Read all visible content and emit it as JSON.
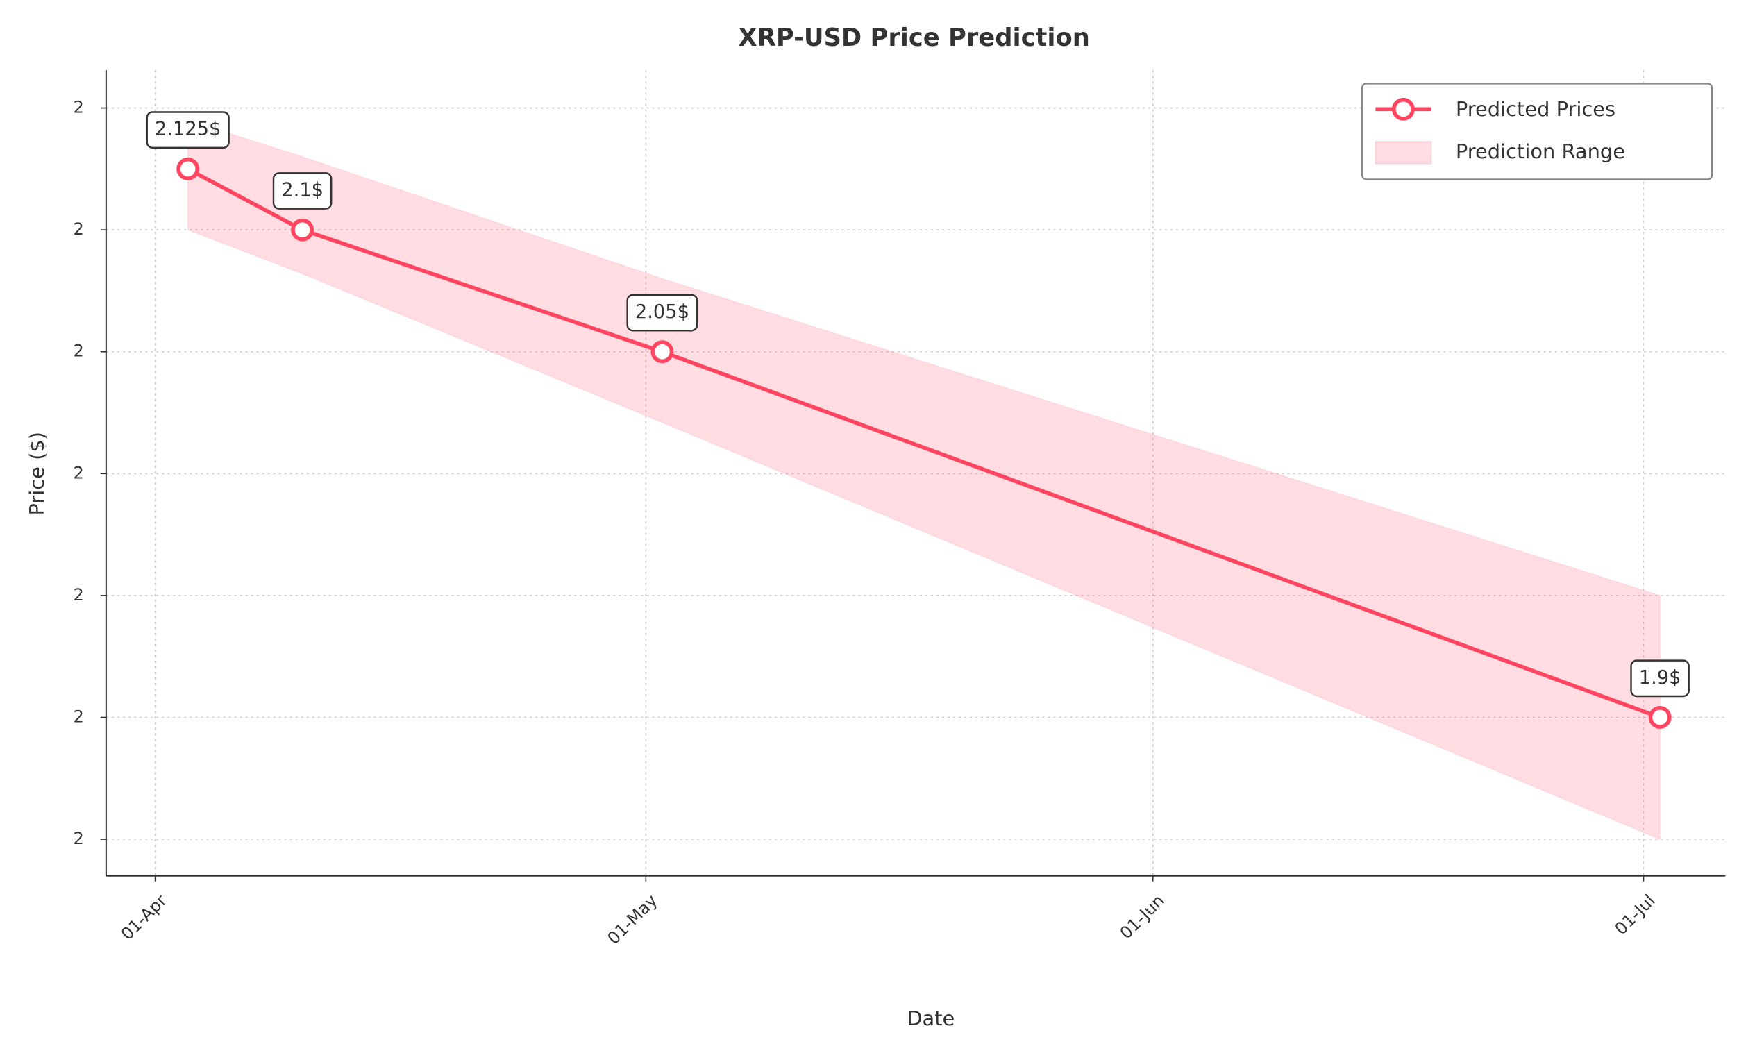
{
  "chart_data": {
    "type": "line",
    "title": "XRP-USD Price Prediction",
    "x_label": "Date",
    "y_label": "Price ($)",
    "x": [
      "03-Apr",
      "10-Apr",
      "02-May",
      "02-Jul"
    ],
    "series": [
      {
        "name": "Predicted Prices",
        "color": "#ff4560",
        "values": [
          2.125,
          2.1,
          2.05,
          1.9
        ],
        "value_labels": [
          "2.125$",
          "2.1$",
          "2.05$",
          "1.9$"
        ]
      },
      {
        "name": "Prediction Range",
        "color": "#ff4560",
        "upper": [
          2.145,
          2.13,
          2.08,
          1.95
        ],
        "lower": [
          2.1,
          2.082,
          2.021,
          1.85
        ]
      }
    ],
    "xlim": [
      "29-Mar",
      "06-Jul"
    ],
    "xticks": [
      "01-Apr",
      "01-May",
      "01-Jun",
      "01-Jul"
    ],
    "ylim": [
      1.835,
      2.1655
    ],
    "yticks": [
      {
        "value": 2.15,
        "label": "2"
      },
      {
        "value": 2.1,
        "label": "2"
      },
      {
        "value": 2.05,
        "label": "2"
      },
      {
        "value": 2.0,
        "label": "2"
      },
      {
        "value": 1.95,
        "label": "2"
      },
      {
        "value": 1.9,
        "label": "2"
      },
      {
        "value": 1.85,
        "label": "2"
      }
    ],
    "grid": true,
    "legend": "upper-right"
  }
}
